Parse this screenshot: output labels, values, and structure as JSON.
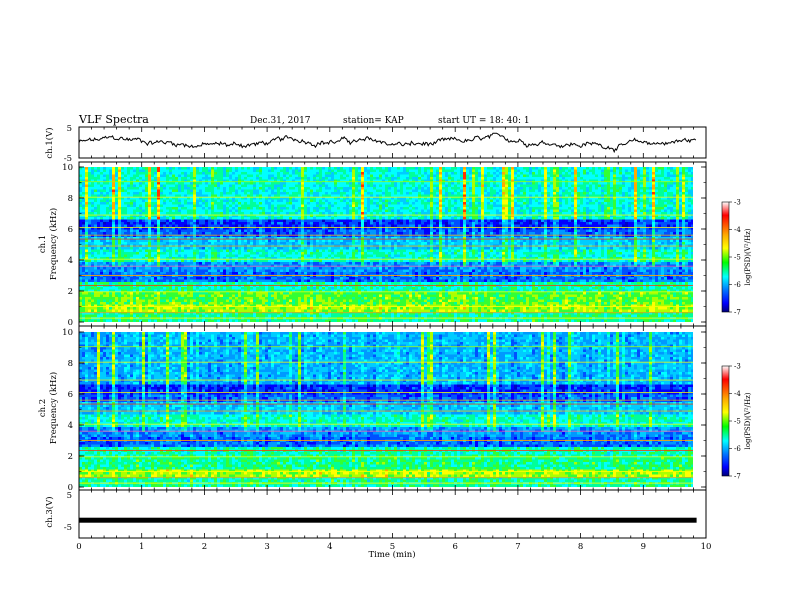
{
  "header": {
    "title": "VLF Spectra",
    "date": "Dec.31, 2017",
    "station": "station= KAP",
    "start": "start  UT =   18: 40: 1"
  },
  "chart_data": {
    "type": "heatmap",
    "x_axis": {
      "label": "Time  (min)",
      "range": [
        0,
        10
      ],
      "ticks": [
        "0",
        "1",
        "2",
        "3",
        "4",
        "5",
        "6",
        "7",
        "8",
        "9",
        "10"
      ]
    },
    "panels": [
      {
        "id": "ch1v",
        "type": "line",
        "ylabel": "ch.1(V)",
        "ylim": [
          -5,
          5
        ],
        "yticks": [
          "5",
          "-5"
        ],
        "note": "waveform amplitude fluctuating roughly between -2 and +2 V, trace ends near 9.85 min"
      },
      {
        "id": "ch1",
        "type": "heatmap",
        "ylabel_line1": "ch.1",
        "ylabel_line2": "Frequency  (kHz)",
        "ylim": [
          0,
          10
        ],
        "yticks": [
          "0",
          "2",
          "4",
          "6",
          "8",
          "10"
        ],
        "data_end_min": 9.85
      },
      {
        "id": "ch2",
        "type": "heatmap",
        "ylabel_line1": "ch.2",
        "ylabel_line2": "Frequency  (kHz)",
        "ylim": [
          0,
          10
        ],
        "yticks": [
          "0",
          "2",
          "4",
          "6",
          "8",
          "10"
        ],
        "data_end_min": 9.85
      },
      {
        "id": "ch3v",
        "type": "line",
        "ylabel": "ch.3(V)",
        "ylim": [
          -5,
          5
        ],
        "yticks": [
          "5",
          "-5"
        ],
        "value": -1.3
      }
    ],
    "colorbar": {
      "label": "log(PSD)(V²/Hz)",
      "range": [
        -7,
        -3
      ],
      "ticks": [
        "-3",
        "-4",
        "-5",
        "-6",
        "-7"
      ],
      "colors": [
        "#ffffff",
        "#ff0000",
        "#ff9900",
        "#ffff00",
        "#00ff00",
        "#00ffff",
        "#0088ff",
        "#0000ff",
        "#000088"
      ]
    }
  }
}
